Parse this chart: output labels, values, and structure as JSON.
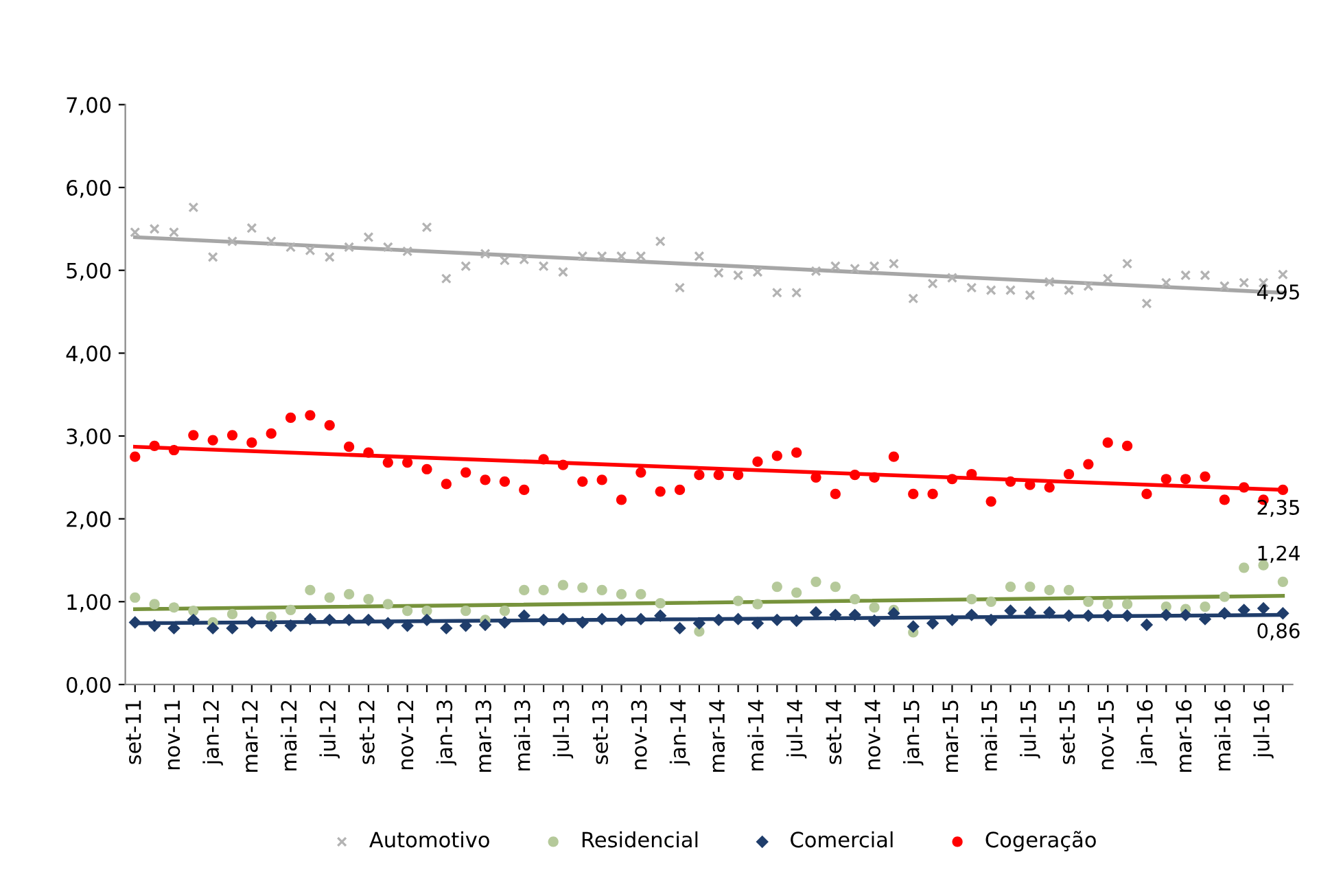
{
  "chart_data": {
    "type": "scatter",
    "categories": [
      "set-11",
      null,
      "nov-11",
      null,
      "jan-12",
      null,
      "mar-12",
      null,
      "mai-12",
      null,
      "jul-12",
      null,
      "set-12",
      null,
      "nov-12",
      null,
      "jan-13",
      null,
      "mar-13",
      null,
      "mai-13",
      null,
      "jul-13",
      null,
      "set-13",
      null,
      "nov-13",
      null,
      "jan-14",
      null,
      "mar-14",
      null,
      "mai-14",
      null,
      "jul-14",
      null,
      "set-14",
      null,
      "nov-14",
      null,
      "jan-15",
      null,
      "mar-15",
      null,
      "mai-15",
      null,
      "jul-15",
      null,
      "set-15",
      null,
      "nov-15",
      null,
      "jan-16",
      null,
      "mar-16",
      null,
      "mai-16",
      null,
      "jul-16",
      null
    ],
    "ylim": [
      0,
      7
    ],
    "yticks": [
      {
        "value": 0,
        "label": "0,00"
      },
      {
        "value": 1,
        "label": "1,00"
      },
      {
        "value": 2,
        "label": "2,00"
      },
      {
        "value": 3,
        "label": "3,00"
      },
      {
        "value": 4,
        "label": "4,00"
      },
      {
        "value": 5,
        "label": "5,00"
      },
      {
        "value": 6,
        "label": "6,00"
      },
      {
        "value": 7,
        "label": "7,00"
      }
    ],
    "grid": false,
    "legend": "bottom",
    "series": [
      {
        "name": "Automotivo",
        "marker": "cross",
        "color": "#b3b3b3",
        "values": [
          5.46,
          5.5,
          5.46,
          5.76,
          5.16,
          5.35,
          5.51,
          5.35,
          5.28,
          5.24,
          5.16,
          5.28,
          5.4,
          5.28,
          5.23,
          5.52,
          4.9,
          5.05,
          5.2,
          5.12,
          5.13,
          5.05,
          4.98,
          5.17,
          5.17,
          5.17,
          5.17,
          5.35,
          4.79,
          5.17,
          4.97,
          4.94,
          4.98,
          4.73,
          4.73,
          4.99,
          5.05,
          5.02,
          5.05,
          5.08,
          4.66,
          4.84,
          4.91,
          4.79,
          4.76,
          4.76,
          4.7,
          4.86,
          4.76,
          4.81,
          4.9,
          5.08,
          4.6,
          4.85,
          4.94,
          4.94,
          4.81,
          4.85,
          4.85,
          4.95
        ],
        "value_labels": [
          null,
          null,
          null,
          null,
          null,
          null,
          null,
          null,
          null,
          null,
          null,
          null,
          null,
          null,
          null,
          null,
          null,
          null,
          null,
          null,
          null,
          null,
          null,
          null,
          null,
          null,
          null,
          null,
          null,
          null,
          null,
          null,
          null,
          null,
          null,
          null,
          null,
          null,
          null,
          null,
          null,
          null,
          null,
          null,
          null,
          null,
          null,
          null,
          null,
          null,
          null,
          null,
          null,
          null,
          null,
          null,
          null,
          null,
          null,
          "4,95"
        ]
      },
      {
        "name": "Residencial",
        "marker": "circle",
        "color": "#b5c99a",
        "values": [
          1.05,
          0.97,
          0.93,
          0.89,
          0.75,
          0.85,
          null,
          0.82,
          0.9,
          1.14,
          1.05,
          1.09,
          1.03,
          0.97,
          0.89,
          0.89,
          null,
          0.89,
          0.78,
          0.89,
          1.14,
          1.14,
          1.2,
          1.17,
          1.14,
          1.09,
          1.09,
          0.98,
          null,
          0.64,
          null,
          1.01,
          0.97,
          1.18,
          1.11,
          1.24,
          1.18,
          1.03,
          0.93,
          0.9,
          0.63,
          null,
          null,
          1.03,
          1.0,
          1.18,
          1.18,
          1.14,
          1.14,
          1.0,
          0.97,
          0.97,
          null,
          0.94,
          0.91,
          0.94,
          1.06,
          1.41,
          1.44,
          1.24
        ],
        "value_labels": [
          null,
          null,
          null,
          null,
          null,
          null,
          null,
          null,
          null,
          null,
          null,
          null,
          null,
          null,
          null,
          null,
          null,
          null,
          null,
          null,
          null,
          null,
          null,
          null,
          null,
          null,
          null,
          null,
          null,
          null,
          null,
          null,
          null,
          null,
          null,
          null,
          null,
          null,
          null,
          null,
          null,
          null,
          null,
          null,
          null,
          null,
          null,
          null,
          null,
          null,
          null,
          null,
          null,
          null,
          null,
          null,
          null,
          null,
          null,
          "1,24"
        ]
      },
      {
        "name": "Comercial",
        "marker": "diamond",
        "color": "#1f3d6b",
        "values": [
          0.75,
          0.71,
          0.68,
          0.78,
          0.68,
          0.68,
          0.75,
          0.71,
          0.71,
          0.79,
          0.78,
          0.78,
          0.78,
          0.74,
          0.71,
          0.78,
          0.68,
          0.71,
          0.72,
          0.75,
          0.83,
          0.78,
          0.79,
          0.75,
          0.79,
          0.78,
          0.79,
          0.83,
          0.68,
          0.74,
          0.78,
          0.79,
          0.74,
          0.78,
          0.77,
          0.87,
          0.84,
          0.84,
          0.77,
          0.86,
          0.7,
          0.74,
          0.78,
          0.84,
          0.78,
          0.89,
          0.87,
          0.87,
          0.83,
          0.83,
          0.83,
          0.83,
          0.72,
          0.84,
          0.84,
          0.79,
          0.86,
          0.9,
          0.92,
          0.86
        ],
        "value_labels": [
          null,
          null,
          null,
          null,
          null,
          null,
          null,
          null,
          null,
          null,
          null,
          null,
          null,
          null,
          null,
          null,
          null,
          null,
          null,
          null,
          null,
          null,
          null,
          null,
          null,
          null,
          null,
          null,
          null,
          null,
          null,
          null,
          null,
          null,
          null,
          null,
          null,
          null,
          null,
          null,
          null,
          null,
          null,
          null,
          null,
          null,
          null,
          null,
          null,
          null,
          null,
          null,
          null,
          null,
          null,
          null,
          null,
          null,
          null,
          "0,86"
        ]
      },
      {
        "name": "Cogeração",
        "marker": "circle",
        "color": "#ff0000",
        "values": [
          2.75,
          2.88,
          2.83,
          3.01,
          2.95,
          3.01,
          2.92,
          3.03,
          3.22,
          3.25,
          3.13,
          2.87,
          2.8,
          2.68,
          2.68,
          2.6,
          2.42,
          2.56,
          2.47,
          2.45,
          2.35,
          2.72,
          2.65,
          2.45,
          2.47,
          2.23,
          2.56,
          2.33,
          2.35,
          2.53,
          2.53,
          2.53,
          2.69,
          2.76,
          2.8,
          2.5,
          2.3,
          2.53,
          2.5,
          2.75,
          2.3,
          2.3,
          2.48,
          2.54,
          2.21,
          2.45,
          2.41,
          2.38,
          2.54,
          2.66,
          2.92,
          2.88,
          2.3,
          2.48,
          2.48,
          2.51,
          2.23,
          2.38,
          2.23,
          2.35
        ],
        "value_labels": [
          null,
          null,
          null,
          null,
          null,
          null,
          null,
          null,
          null,
          null,
          null,
          null,
          null,
          null,
          null,
          null,
          null,
          null,
          null,
          null,
          null,
          null,
          null,
          null,
          null,
          null,
          null,
          null,
          null,
          null,
          null,
          null,
          null,
          null,
          null,
          null,
          null,
          null,
          null,
          null,
          null,
          null,
          null,
          null,
          null,
          null,
          null,
          null,
          null,
          null,
          null,
          null,
          null,
          null,
          null,
          null,
          null,
          null,
          null,
          "2,35"
        ]
      },
      {
        "type": "line",
        "color": "#a6a6a6",
        "values": [
          5.4,
          null,
          null,
          null,
          null,
          null,
          null,
          null,
          null,
          null,
          null,
          null,
          null,
          null,
          null,
          null,
          null,
          null,
          null,
          null,
          null,
          null,
          null,
          null,
          null,
          null,
          null,
          null,
          null,
          null,
          null,
          null,
          null,
          null,
          null,
          null,
          null,
          null,
          null,
          null,
          null,
          null,
          null,
          null,
          null,
          null,
          null,
          null,
          null,
          null,
          null,
          null,
          null,
          null,
          null,
          null,
          null,
          null,
          null,
          4.73
        ]
      },
      {
        "type": "line",
        "color": "#77933c",
        "values": [
          0.91,
          null,
          null,
          null,
          null,
          null,
          null,
          null,
          null,
          null,
          null,
          null,
          null,
          null,
          null,
          null,
          null,
          null,
          null,
          null,
          null,
          null,
          null,
          null,
          null,
          null,
          null,
          null,
          null,
          null,
          null,
          null,
          null,
          null,
          null,
          null,
          null,
          null,
          null,
          null,
          null,
          null,
          null,
          null,
          null,
          null,
          null,
          null,
          null,
          null,
          null,
          null,
          null,
          null,
          null,
          null,
          null,
          null,
          null,
          1.07
        ]
      },
      {
        "type": "line",
        "color": "#1f3d6b",
        "values": [
          0.74,
          null,
          null,
          null,
          null,
          null,
          null,
          null,
          null,
          null,
          null,
          null,
          null,
          null,
          null,
          null,
          null,
          null,
          null,
          null,
          null,
          null,
          null,
          null,
          null,
          null,
          null,
          null,
          null,
          null,
          null,
          null,
          null,
          null,
          null,
          null,
          null,
          null,
          null,
          null,
          null,
          null,
          null,
          null,
          null,
          null,
          null,
          null,
          null,
          null,
          null,
          null,
          null,
          null,
          null,
          null,
          null,
          null,
          null,
          0.84
        ]
      },
      {
        "type": "line",
        "color": "#ff0000",
        "values": [
          2.87,
          null,
          null,
          null,
          null,
          null,
          null,
          null,
          null,
          null,
          null,
          null,
          null,
          null,
          null,
          null,
          null,
          null,
          null,
          null,
          null,
          null,
          null,
          null,
          null,
          null,
          null,
          null,
          null,
          null,
          null,
          null,
          null,
          null,
          null,
          null,
          null,
          null,
          null,
          null,
          null,
          null,
          null,
          null,
          null,
          null,
          null,
          null,
          null,
          null,
          null,
          null,
          null,
          null,
          null,
          null,
          null,
          null,
          null,
          2.35
        ]
      }
    ]
  }
}
